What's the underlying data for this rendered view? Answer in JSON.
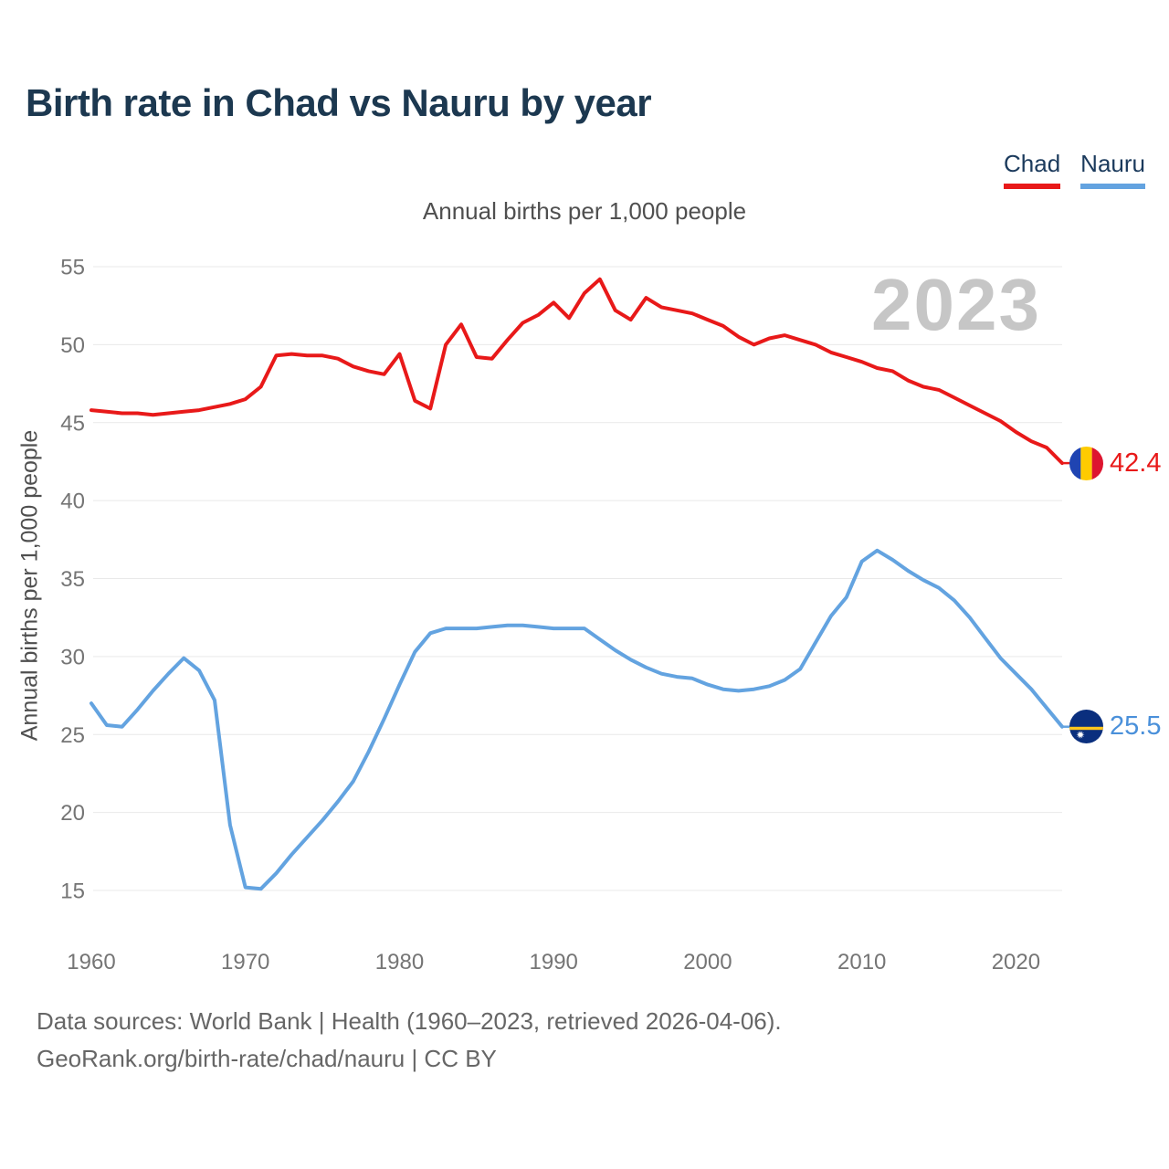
{
  "header": {
    "title": "Birth rate in Chad vs Nauru by year"
  },
  "legend": [
    {
      "id": "chad",
      "label": "Chad",
      "color": "#e81919"
    },
    {
      "id": "nauru",
      "label": "Nauru",
      "color": "#63a3e0"
    }
  ],
  "chart_data": {
    "type": "line",
    "title": "Annual births per 1,000 people",
    "ylabel": "Annual births per 1,000 people",
    "watermark": "2023",
    "x_start": 1960,
    "x_end": 2023,
    "xticks": [
      1960,
      1970,
      1980,
      1990,
      2000,
      2010,
      2020
    ],
    "yticks": [
      15,
      20,
      25,
      30,
      35,
      40,
      45,
      50,
      55
    ],
    "ylim": [
      15,
      55
    ],
    "grid": true,
    "series": [
      {
        "name": "Chad",
        "color": "#e81919",
        "label_color": "#e81919",
        "end_label": "42.4",
        "flag": "chad-flag",
        "values": [
          45.8,
          45.7,
          45.6,
          45.6,
          45.5,
          45.6,
          45.7,
          45.8,
          46.0,
          46.2,
          46.5,
          47.3,
          49.3,
          49.4,
          49.3,
          49.3,
          49.1,
          48.6,
          48.3,
          48.1,
          49.4,
          46.4,
          45.9,
          50.0,
          51.3,
          49.2,
          49.1,
          50.3,
          51.4,
          51.9,
          52.7,
          51.7,
          53.3,
          54.2,
          52.2,
          51.6,
          53.0,
          52.4,
          52.2,
          52.0,
          51.6,
          51.2,
          50.5,
          50.0,
          50.4,
          50.6,
          50.3,
          50.0,
          49.5,
          49.2,
          48.9,
          48.5,
          48.3,
          47.7,
          47.3,
          47.1,
          46.6,
          46.1,
          45.6,
          45.1,
          44.4,
          43.8,
          43.4,
          42.4
        ]
      },
      {
        "name": "Nauru",
        "color": "#63a3e0",
        "label_color": "#4a90da",
        "end_label": "25.5",
        "flag": "nauru-flag",
        "values": [
          27.0,
          25.6,
          25.5,
          26.6,
          27.8,
          28.9,
          29.9,
          29.1,
          27.2,
          19.2,
          15.2,
          15.1,
          16.1,
          17.3,
          18.4,
          19.5,
          20.7,
          22.0,
          23.9,
          26.0,
          28.2,
          30.3,
          31.5,
          31.8,
          31.8,
          31.8,
          31.9,
          32.0,
          32.0,
          31.9,
          31.8,
          31.8,
          31.8,
          31.1,
          30.4,
          29.8,
          29.3,
          28.9,
          28.7,
          28.6,
          28.2,
          27.9,
          27.8,
          27.9,
          28.1,
          28.5,
          29.2,
          30.9,
          32.6,
          33.8,
          36.1,
          36.8,
          36.2,
          35.5,
          34.9,
          34.4,
          33.6,
          32.5,
          31.2,
          29.9,
          28.9,
          27.9,
          26.7,
          25.5
        ]
      }
    ]
  },
  "footer": {
    "line1": "Data sources: World Bank | Health (1960–2023, retrieved 2026-04-06).",
    "line2": "GeoRank.org/birth-rate/chad/nauru | CC BY"
  }
}
